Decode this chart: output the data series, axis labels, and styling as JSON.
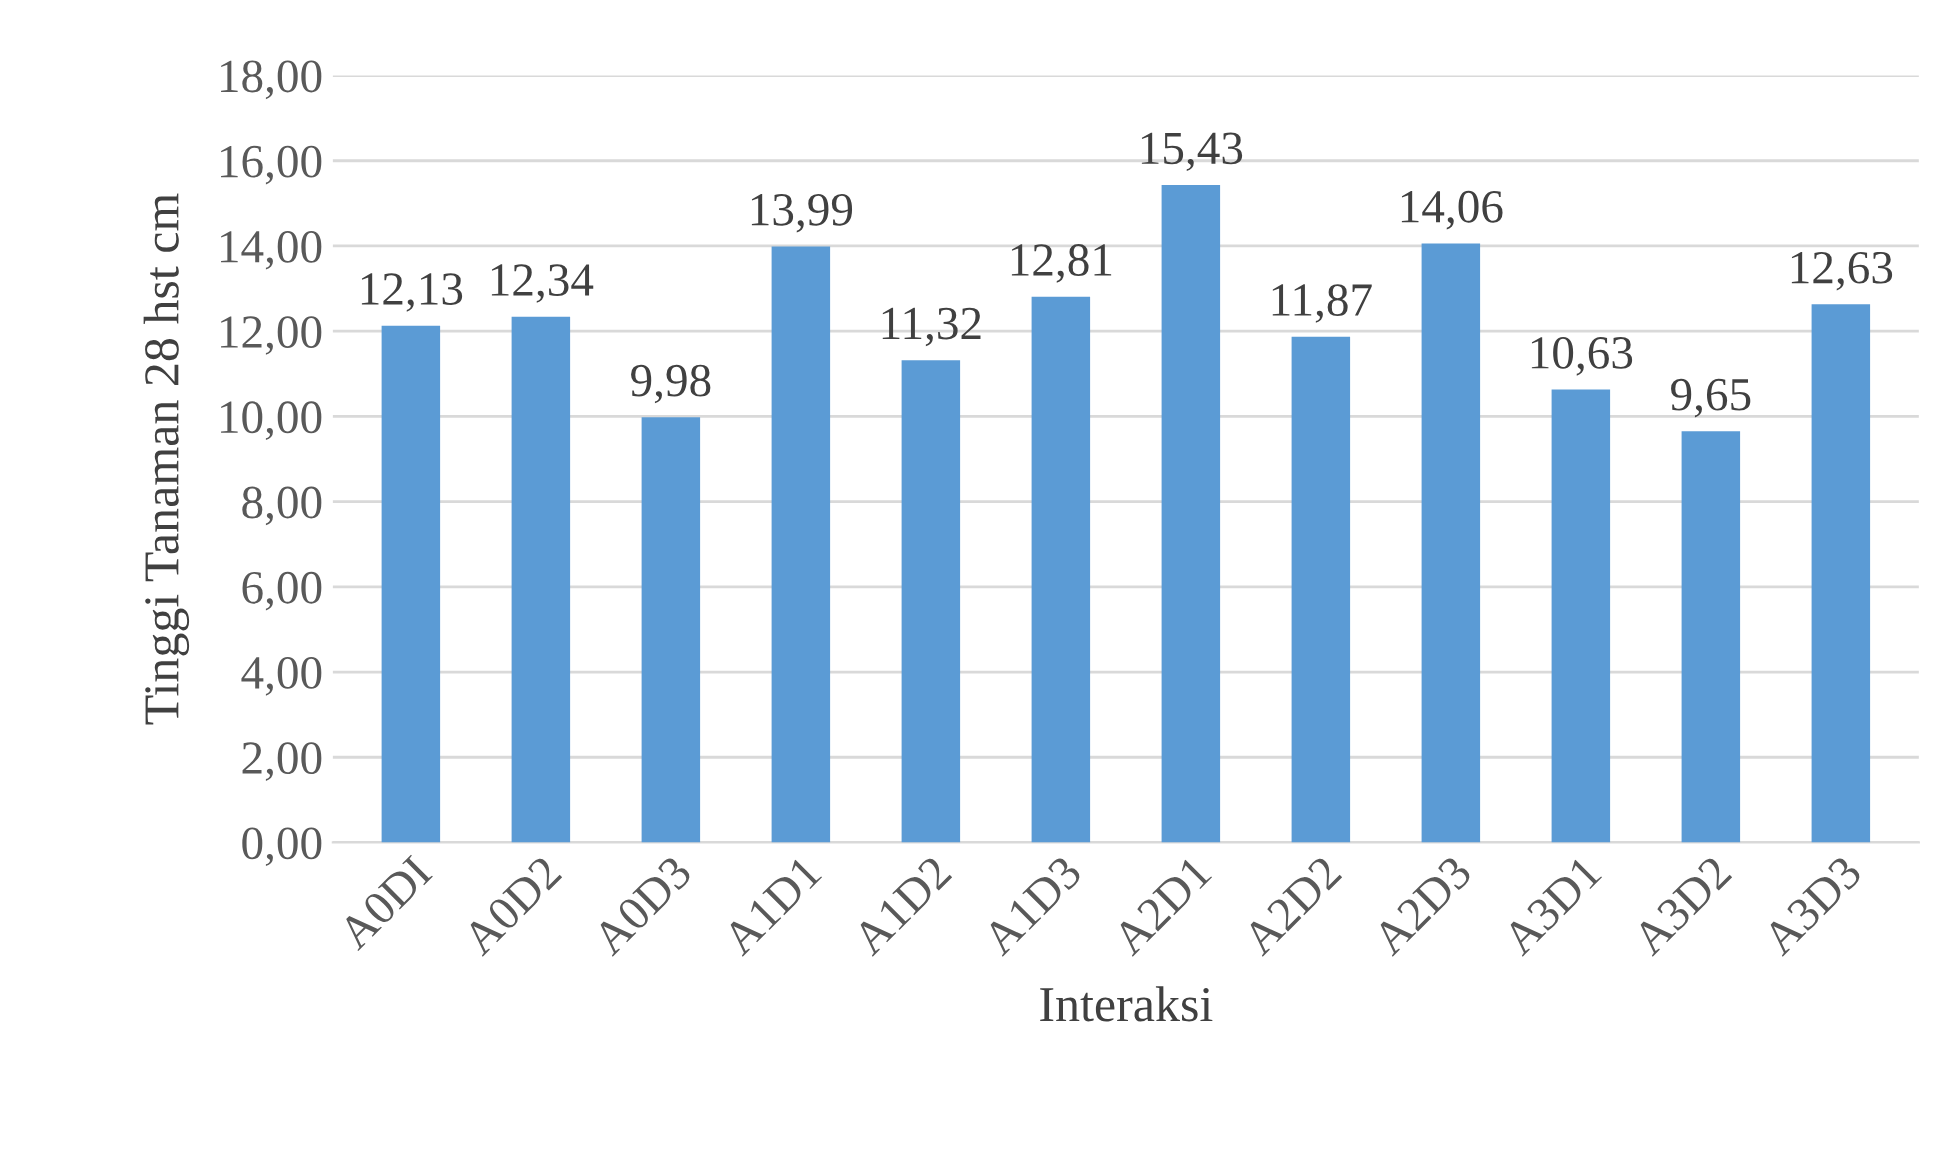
{
  "chart_data": {
    "type": "bar",
    "xlabel": "Interaksi",
    "ylabel": "Tinggi Tanaman 28 hst cm",
    "categories": [
      "A0DI",
      "A0D2",
      "A0D3",
      "A1D1",
      "A1D2",
      "A1D3",
      "A2D1",
      "A2D2",
      "A2D3",
      "A3D1",
      "A3D2",
      "A3D3"
    ],
    "values": [
      12.13,
      12.34,
      9.98,
      13.99,
      11.32,
      12.81,
      15.43,
      11.87,
      14.06,
      10.63,
      9.65,
      12.63
    ],
    "value_labels": [
      "12,13",
      "12,34",
      "9,98",
      "13,99",
      "11,32",
      "12,81",
      "15,43",
      "11,87",
      "14,06",
      "10,63",
      "9,65",
      "12,63"
    ],
    "color": "#5b9bd5",
    "ylim": [
      0,
      18
    ],
    "yticks": [
      {
        "value": 0,
        "label": "0,00"
      },
      {
        "value": 2,
        "label": "2,00"
      },
      {
        "value": 4,
        "label": "4,00"
      },
      {
        "value": 6,
        "label": "6,00"
      },
      {
        "value": 8,
        "label": "8,00"
      },
      {
        "value": 10,
        "label": "10,00"
      },
      {
        "value": 12,
        "label": "12,00"
      },
      {
        "value": 14,
        "label": "14,00"
      },
      {
        "value": 16,
        "label": "16,00"
      },
      {
        "value": 18,
        "label": "18,00"
      }
    ],
    "grid": "y"
  }
}
